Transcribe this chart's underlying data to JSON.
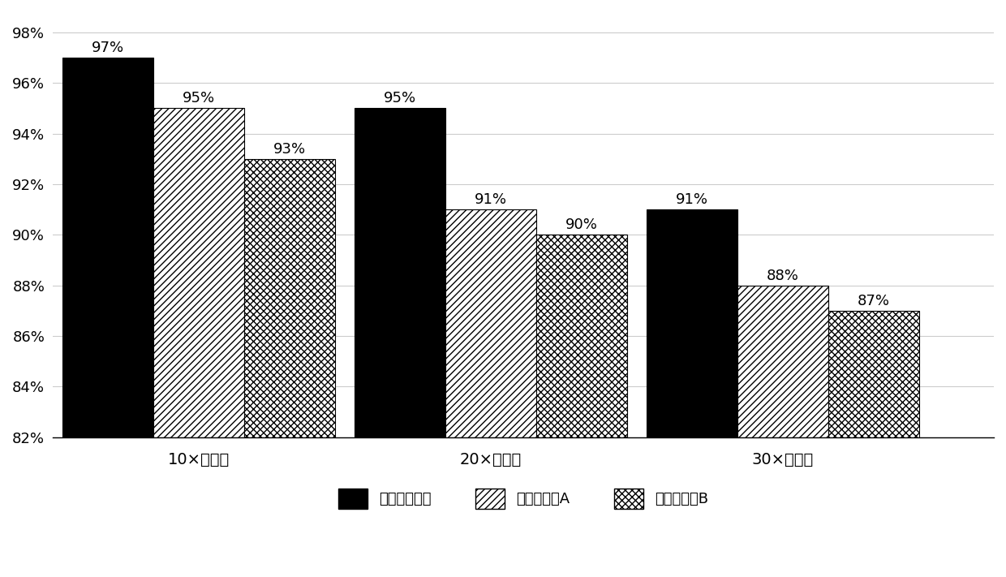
{
  "categories": [
    "10×覆盖率",
    "20×覆盖率",
    "30×覆盖率"
  ],
  "series_names": [
    "本发明探针组",
    "对照探针组A",
    "对照探针组B"
  ],
  "series_values": [
    [
      97,
      95,
      91
    ],
    [
      95,
      91,
      88
    ],
    [
      93,
      90,
      87
    ]
  ],
  "ylim": [
    82,
    98.8
  ],
  "yticks": [
    82,
    84,
    86,
    88,
    90,
    92,
    94,
    96,
    98
  ],
  "bar_width": 0.28,
  "group_positions": [
    0.35,
    1.25,
    2.15
  ],
  "background_color": "#ffffff",
  "label_fontsize": 14,
  "tick_fontsize": 13,
  "legend_fontsize": 13,
  "annotation_fontsize": 13,
  "grid_color": "#cccccc",
  "xlim": [
    -0.1,
    2.8
  ]
}
